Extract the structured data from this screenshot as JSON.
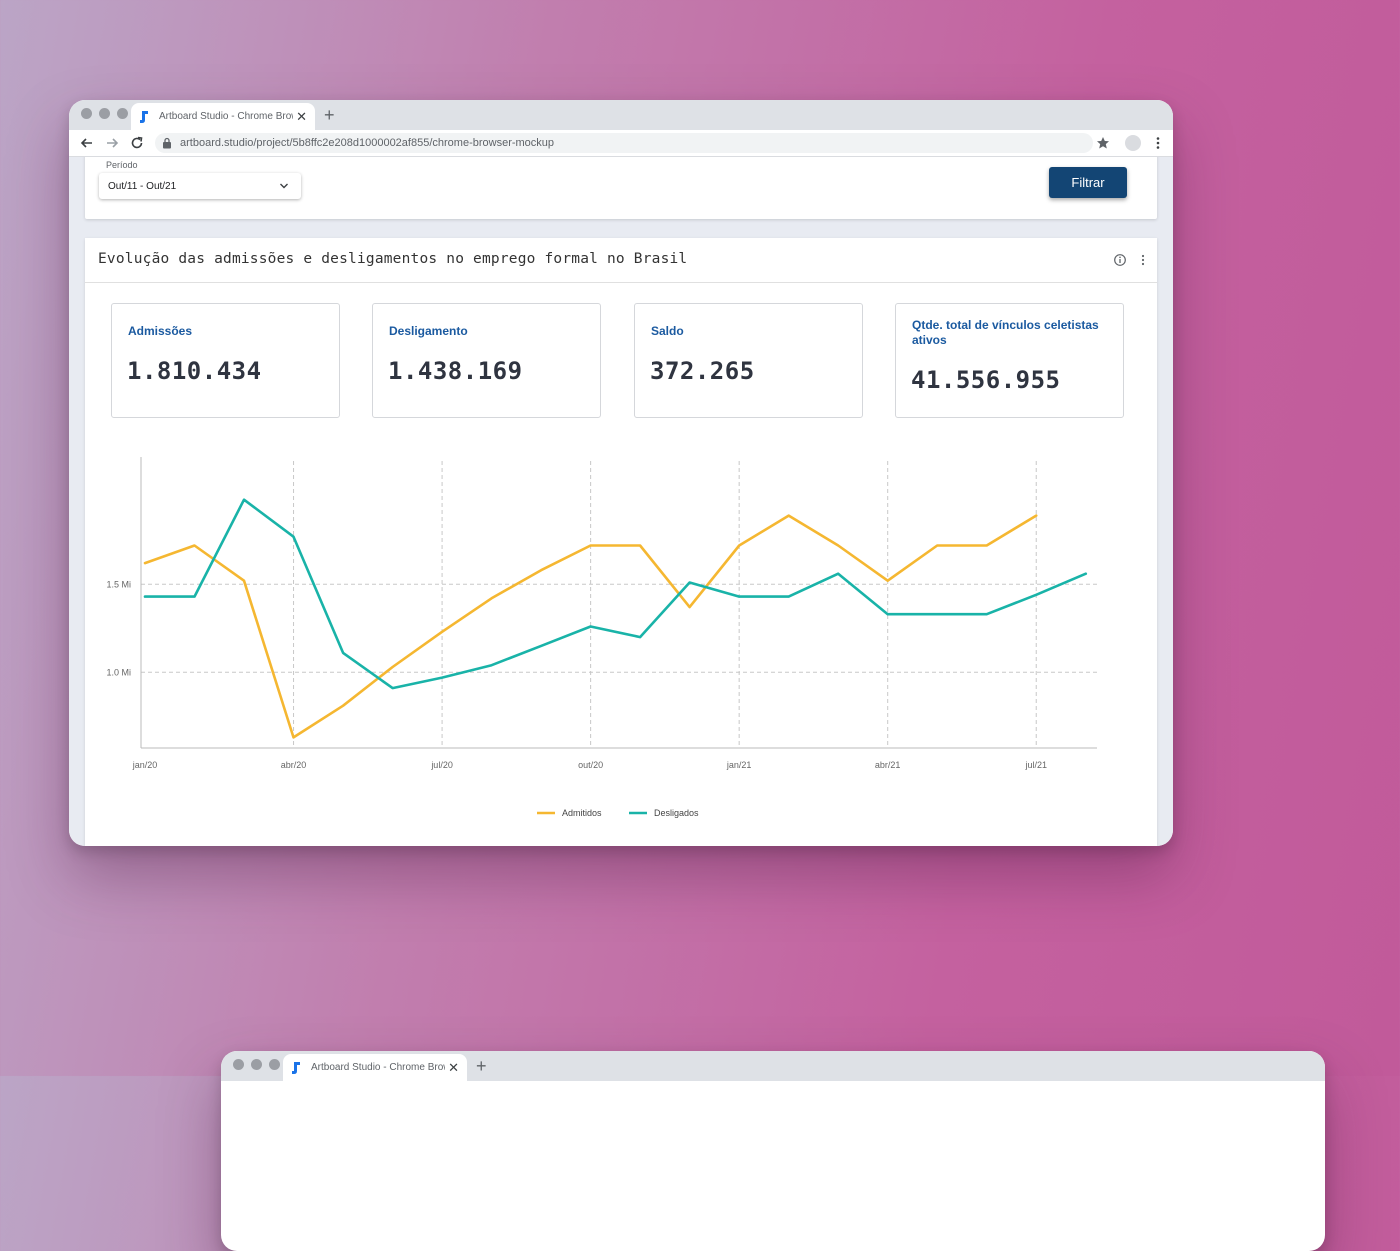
{
  "browser": {
    "tab_title": "Artboard Studio - Chrome Browser Mockup",
    "new_tab_symbol": "+",
    "close_symbol": "✕",
    "url": "artboard.studio/project/5b8ffc2e208d1000002af855/chrome-browser-mockup",
    "icons": [
      "back-arrow-icon",
      "forward-arrow-icon",
      "reload-icon",
      "lock-icon",
      "star-icon",
      "profile-icon",
      "menu-icon"
    ]
  },
  "filter": {
    "period_label": "Período",
    "period_value": "Out/11 - Out/21",
    "filter_button": "Filtrar"
  },
  "card": {
    "title": "Evolução das admissões e desligamentos no emprego formal no Brasil",
    "kpis": [
      {
        "label": "Admissões",
        "value": "1.810.434"
      },
      {
        "label": "Desligamento",
        "value": "1.438.169"
      },
      {
        "label": "Saldo",
        "value": "372.265"
      },
      {
        "label": "Qtde. total de vínculos celetistas ativos",
        "value": "41.556.955"
      }
    ]
  },
  "colors": {
    "accent": "#134574",
    "kpi_label": "#1b5aa0",
    "admitidos": "#f5b731",
    "desligados": "#19b3a8"
  },
  "second_window": {
    "tab_title": "Artboard Studio - Chrome Browser Mockup"
  },
  "chart_data": {
    "type": "line",
    "title": "",
    "xlabel": "",
    "ylabel": "",
    "x_ticks": [
      "jan/20",
      "abr/20",
      "jul/20",
      "out/20",
      "jan/21",
      "abr/21",
      "jul/21"
    ],
    "y_ticks": [
      {
        "value": 1.0,
        "label": "1.0 Mi"
      },
      {
        "value": 1.5,
        "label": "1.5 Mi"
      }
    ],
    "ylim": [
      0.57,
      2.2
    ],
    "x_month_range": [
      0,
      18.5
    ],
    "grid": true,
    "legend_position": "bottom-center",
    "series": [
      {
        "name": "Admitidos",
        "color": "#f5b731",
        "points": [
          [
            0,
            1.62
          ],
          [
            1,
            1.72
          ],
          [
            2,
            1.52
          ],
          [
            3,
            0.63
          ],
          [
            4,
            0.81
          ],
          [
            5,
            1.03
          ],
          [
            6,
            1.23
          ],
          [
            7,
            1.42
          ],
          [
            8,
            1.58
          ],
          [
            9,
            1.72
          ],
          [
            10,
            1.72
          ],
          [
            11,
            1.37
          ],
          [
            12,
            1.72
          ],
          [
            13,
            1.89
          ],
          [
            14,
            1.72
          ],
          [
            15,
            1.52
          ],
          [
            16,
            1.72
          ],
          [
            17,
            1.72
          ],
          [
            18,
            1.89
          ]
        ]
      },
      {
        "name": "Desligados",
        "color": "#19b3a8",
        "points": [
          [
            0,
            1.43
          ],
          [
            1,
            1.43
          ],
          [
            2,
            1.98
          ],
          [
            3,
            1.77
          ],
          [
            4,
            1.11
          ],
          [
            5,
            0.91
          ],
          [
            6,
            0.97
          ],
          [
            7,
            1.04
          ],
          [
            8,
            1.15
          ],
          [
            9,
            1.26
          ],
          [
            10,
            1.2
          ],
          [
            11,
            1.51
          ],
          [
            12,
            1.43
          ],
          [
            13,
            1.43
          ],
          [
            14,
            1.56
          ],
          [
            15,
            1.33
          ],
          [
            16,
            1.33
          ],
          [
            17,
            1.33
          ],
          [
            18,
            1.44
          ],
          [
            19,
            1.56
          ]
        ]
      }
    ]
  }
}
